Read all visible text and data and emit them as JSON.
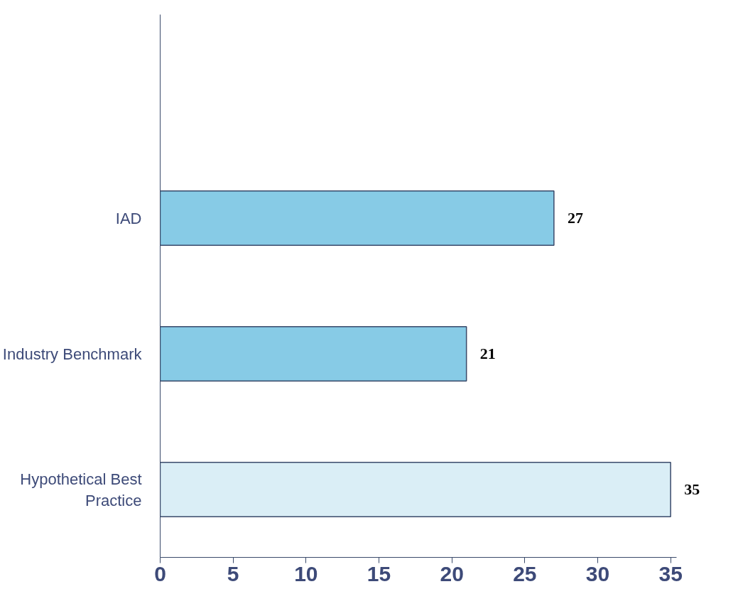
{
  "chart_data": {
    "type": "bar",
    "orientation": "horizontal",
    "categories": [
      null,
      "IAD",
      "Industry Benchmark",
      "Hypothetical Best Practice"
    ],
    "values": [
      null,
      27,
      21,
      35
    ],
    "colors": [
      "#87cbe6",
      "#87cbe6",
      "#87cbe6",
      "#daeef6"
    ],
    "xlim": [
      0,
      35.4
    ],
    "xticks": [
      0,
      5,
      10,
      15,
      20,
      25,
      30,
      35
    ],
    "grid": false,
    "data_labels": true
  }
}
